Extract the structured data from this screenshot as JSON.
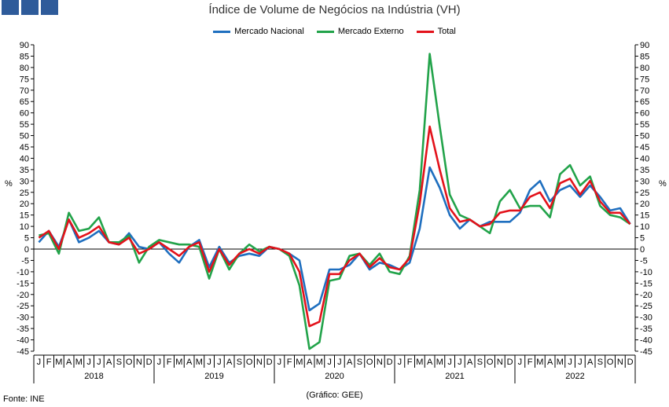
{
  "header": {
    "logo_icon": "ine-logo-icon",
    "logo_color": "#2e5b9a"
  },
  "chart_data": {
    "type": "line",
    "title": "Índice de Volume de Negócios na Indústria (VH)",
    "ylabel_left": "%",
    "ylabel_right": "%",
    "ylim": [
      -45,
      90
    ],
    "yticks": [
      -45,
      -40,
      -35,
      -30,
      -25,
      -20,
      -15,
      -10,
      -5,
      0,
      5,
      10,
      15,
      20,
      25,
      30,
      35,
      40,
      45,
      50,
      55,
      60,
      65,
      70,
      75,
      80,
      85,
      90
    ],
    "month_labels": [
      "J",
      "F",
      "M",
      "A",
      "M",
      "J",
      "J",
      "A",
      "S",
      "O",
      "N",
      "D"
    ],
    "years": [
      "2018",
      "2019",
      "2020",
      "2021",
      "2022"
    ],
    "grid": false,
    "legend_position": "top-center",
    "series": [
      {
        "name": "Mercado Nacional",
        "color": "#1f6fbf",
        "values": [
          3,
          8,
          1,
          13,
          3,
          5,
          8,
          3,
          2,
          7,
          1,
          0,
          3,
          -2,
          -6,
          1,
          4,
          -8,
          1,
          -6,
          -3,
          -2,
          -3,
          1,
          0,
          -2,
          -5,
          -27,
          -24,
          -9,
          -9,
          -7,
          -2,
          -9,
          -6,
          -7,
          -9,
          -6,
          9,
          36,
          27,
          15,
          9,
          13,
          10,
          12,
          12,
          12,
          16,
          26,
          30,
          21,
          26,
          28,
          23,
          28,
          23,
          17,
          18,
          11
        ]
      },
      {
        "name": "Mercado Externo",
        "color": "#22a34a",
        "values": [
          6,
          7,
          -2,
          16,
          8,
          9,
          14,
          3,
          3,
          6,
          -6,
          1,
          4,
          3,
          2,
          2,
          1,
          -13,
          0,
          -9,
          -2,
          2,
          -1,
          1,
          0,
          -3,
          -16,
          -44,
          -41,
          -14,
          -13,
          -3,
          -2,
          -7,
          -2,
          -10,
          -11,
          -3,
          26,
          86,
          54,
          24,
          15,
          13,
          10,
          7,
          21,
          26,
          18,
          19,
          19,
          14,
          33,
          37,
          28,
          32,
          19,
          15,
          14,
          11
        ]
      },
      {
        "name": "Total",
        "color": "#e3121b",
        "values": [
          5,
          8,
          0,
          13,
          5,
          7,
          10,
          3,
          2,
          5,
          -2,
          0,
          3,
          0,
          -3,
          1,
          3,
          -10,
          0,
          -7,
          -2,
          0,
          -2,
          1,
          0,
          -2,
          -10,
          -34,
          -32,
          -11,
          -11,
          -5,
          -2,
          -8,
          -4,
          -8,
          -9,
          -4,
          20,
          54,
          35,
          18,
          12,
          13,
          10,
          11,
          16,
          17,
          17,
          23,
          25,
          18,
          29,
          31,
          24,
          30,
          21,
          16,
          16,
          11
        ]
      }
    ]
  },
  "footer": {
    "source": "Fonte: INE",
    "credit": "(Gráfico: GEE)"
  }
}
